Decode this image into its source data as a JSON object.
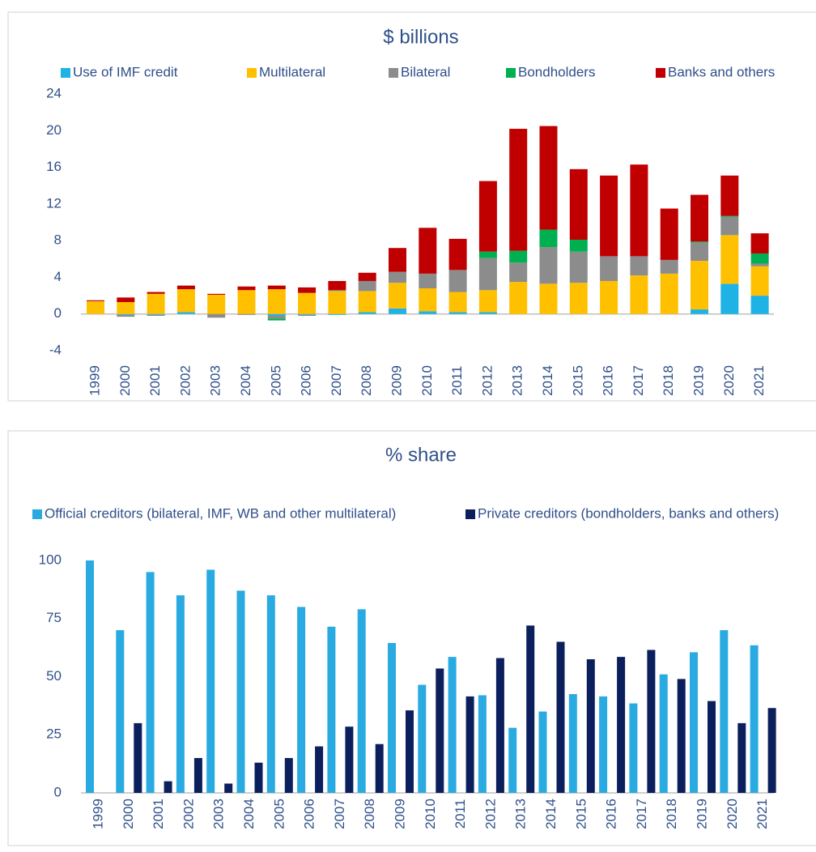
{
  "chart_data": [
    {
      "type": "bar",
      "stacked": true,
      "title": "$ billions",
      "legend": "top",
      "categories": [
        "1999",
        "2000",
        "2001",
        "2002",
        "2003",
        "2004",
        "2005",
        "2006",
        "2007",
        "2008",
        "2009",
        "2010",
        "2011",
        "2012",
        "2013",
        "2014",
        "2015",
        "2016",
        "2017",
        "2018",
        "2019",
        "2020",
        "2021"
      ],
      "series": [
        {
          "name": "Use of IMF credit",
          "color": "#1fb3e5",
          "values": [
            0,
            -0.1,
            -0.1,
            0.2,
            0,
            0,
            -0.2,
            -0.1,
            -0.1,
            0.2,
            0.6,
            0.3,
            0.2,
            0.2,
            0,
            0,
            0,
            0,
            0,
            0,
            0.5,
            3.3,
            2.0
          ]
        },
        {
          "name": "Multilateral",
          "color": "#ffc000",
          "values": [
            1.4,
            1.3,
            2.2,
            2.5,
            2.1,
            2.6,
            2.7,
            2.3,
            2.5,
            2.3,
            2.8,
            2.5,
            2.2,
            2.4,
            3.5,
            3.3,
            3.4,
            3.6,
            4.2,
            4.4,
            5.3,
            5.3,
            3.2
          ]
        },
        {
          "name": "Bilateral",
          "color": "#8c8c8c",
          "values": [
            0,
            -0.2,
            -0.1,
            0,
            -0.4,
            -0.1,
            -0.3,
            -0.1,
            0.1,
            1.1,
            1.2,
            1.6,
            2.4,
            3.5,
            2.1,
            4.0,
            3.4,
            2.7,
            2.1,
            1.5,
            2.0,
            2.0,
            0.3
          ]
        },
        {
          "name": "Bondholders",
          "color": "#00b050",
          "values": [
            0,
            0,
            0,
            0,
            0,
            0,
            -0.2,
            0,
            0,
            0,
            0,
            0,
            0,
            0.7,
            1.3,
            1.9,
            1.3,
            0,
            0,
            0,
            0.1,
            0.1,
            1.1
          ]
        },
        {
          "name": "Banks and others",
          "color": "#c00000",
          "values": [
            0.1,
            0.5,
            0.2,
            0.4,
            0.1,
            0.4,
            0.4,
            0.6,
            1.0,
            0.9,
            2.6,
            5.0,
            3.4,
            7.7,
            13.3,
            11.3,
            7.7,
            8.8,
            10.0,
            5.6,
            5.1,
            4.4,
            2.2
          ]
        }
      ],
      "ylim": [
        -4,
        24
      ],
      "yticks": [
        -4,
        0,
        4,
        8,
        12,
        16,
        20,
        24
      ],
      "grid": false
    },
    {
      "type": "bar",
      "stacked": false,
      "title": "% share",
      "legend": "top",
      "categories": [
        "1999",
        "2000",
        "2001",
        "2002",
        "2003",
        "2004",
        "2005",
        "2006",
        "2007",
        "2008",
        "2009",
        "2010",
        "2011",
        "2012",
        "2013",
        "2014",
        "2015",
        "2016",
        "2017",
        "2018",
        "2019",
        "2020",
        "2021"
      ],
      "series": [
        {
          "name": "Official creditors (bilateral, IMF, WB and other multilateral)",
          "color": "#29abe2",
          "values": [
            100,
            70,
            95,
            85,
            96,
            87,
            85,
            80,
            71.5,
            79,
            64.5,
            46.5,
            58.5,
            42,
            28,
            35,
            42.5,
            41.5,
            38.5,
            51,
            60.5,
            70,
            63.5
          ]
        },
        {
          "name": "Private creditors (bondholders, banks and others)",
          "color": "#0b1f5c",
          "values": [
            0,
            30,
            5,
            15,
            4,
            13,
            15,
            20,
            28.5,
            21,
            35.5,
            53.5,
            41.5,
            58,
            72,
            65,
            57.5,
            58.5,
            61.5,
            49,
            39.5,
            30,
            36.5
          ]
        }
      ],
      "ylim": [
        0,
        100
      ],
      "yticks": [
        0,
        25,
        50,
        75,
        100
      ],
      "grid": false
    }
  ]
}
